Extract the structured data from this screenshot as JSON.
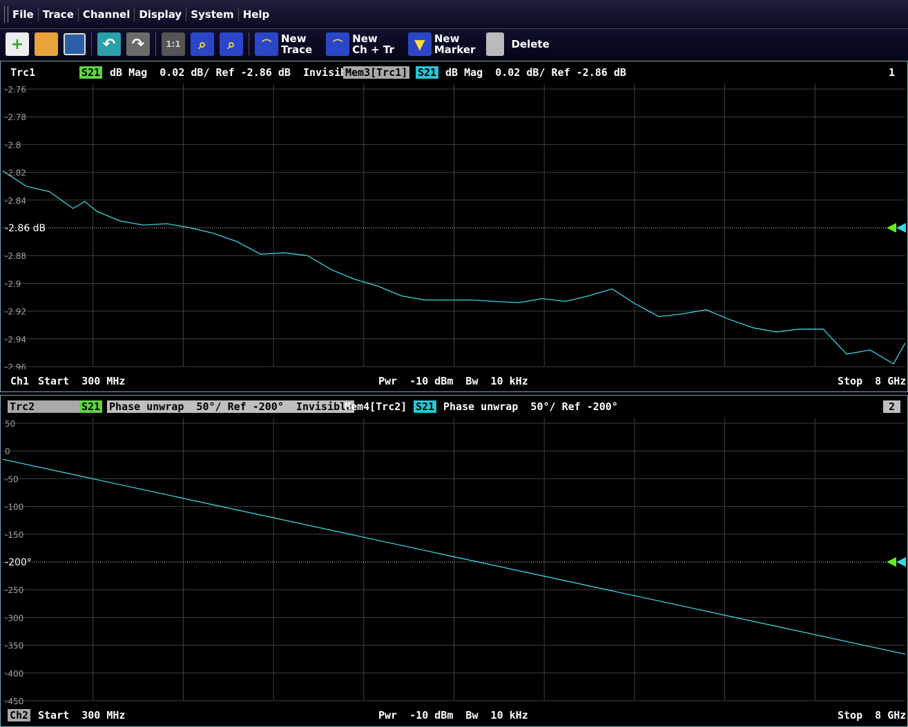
{
  "menu": [
    "File",
    "Trace",
    "Channel",
    "Display",
    "System",
    "Help"
  ],
  "toolbar": {
    "new_trace": "New\nTrace",
    "new_ch_tr": "New\nCh + Tr",
    "new_marker": "New\nMarker",
    "delete": "Delete",
    "zoom_1_1": "1:1"
  },
  "ch1": {
    "trace_name": "Trc1",
    "param": "S21",
    "info": "dB Mag  0.02 dB/ Ref -2.86 dB  Invisible",
    "mem_name": "Mem3[Trc1]",
    "mem_param": "S21",
    "mem_info": "dB Mag  0.02 dB/ Ref -2.86 dB",
    "number": "1",
    "ref_label": "-2.86 dB",
    "yticks": [
      "-2.76",
      "-2.78",
      "-2.8",
      "-2.82",
      "-2.84",
      "-2.86",
      "-2.88",
      "-2.9",
      "-2.92",
      "-2.94",
      "-2.96"
    ],
    "footer_left_label": "Ch1",
    "footer_start": "Start  300 MHz",
    "footer_mid": "Pwr  -10 dBm  Bw  10 kHz",
    "footer_stop": "Stop  8 GHz"
  },
  "ch2": {
    "trace_name": "Trc2",
    "param": "S21",
    "info": "Phase unwrap  50°/ Ref -200°  Invisible",
    "mem_name": "Mem4[Trc2]",
    "mem_param": "S21",
    "mem_info": "Phase unwrap  50°/ Ref -200°",
    "number": "2",
    "ref_label": "-200°",
    "yticks": [
      "50",
      "0",
      "-50",
      "-100",
      "-150",
      "-200",
      "-250",
      "-300",
      "-350",
      "-400",
      "-450"
    ],
    "footer_left_label": "Ch2",
    "footer_start": "Start  300 MHz",
    "footer_mid": "Pwr  -10 dBm  Bw  10 kHz",
    "footer_stop": "Stop  8 GHz"
  },
  "colors": {
    "trace": "#39d5e0",
    "ref_marker": "#66ee22",
    "grid": "#404040",
    "label": "#a0a0a0"
  },
  "chart_data": [
    {
      "type": "line",
      "title": "",
      "xlabel": "",
      "ylabel": "",
      "xlim": [
        0.3,
        8.0
      ],
      "ylim": [
        -2.96,
        -2.76
      ],
      "x": [
        0.3,
        0.5,
        0.7,
        0.9,
        1.0,
        1.1,
        1.3,
        1.5,
        1.7,
        1.9,
        2.1,
        2.3,
        2.5,
        2.7,
        2.9,
        3.1,
        3.3,
        3.5,
        3.7,
        3.9,
        4.1,
        4.3,
        4.5,
        4.7,
        4.9,
        5.1,
        5.3,
        5.5,
        5.7,
        5.9,
        6.1,
        6.3,
        6.5,
        6.7,
        6.9,
        7.1,
        7.3,
        7.5,
        7.7,
        7.9,
        8.0
      ],
      "series": [
        {
          "name": "Mem3[Trc1]",
          "values": [
            -2.819,
            -2.83,
            -2.834,
            -2.846,
            -2.841,
            -2.848,
            -2.855,
            -2.858,
            -2.857,
            -2.86,
            -2.864,
            -2.87,
            -2.879,
            -2.878,
            -2.88,
            -2.89,
            -2.897,
            -2.902,
            -2.909,
            -2.912,
            -2.912,
            -2.912,
            -2.913,
            -2.914,
            -2.911,
            -2.913,
            -2.909,
            -2.904,
            -2.915,
            -2.924,
            -2.922,
            -2.919,
            -2.926,
            -2.932,
            -2.935,
            -2.933,
            -2.933,
            -2.951,
            -2.948,
            -2.958,
            -2.943
          ]
        }
      ]
    },
    {
      "type": "line",
      "title": "",
      "xlabel": "",
      "ylabel": "",
      "xlim": [
        0.3,
        8.0
      ],
      "ylim": [
        -450,
        50
      ],
      "x": [
        0.3,
        8.0
      ],
      "series": [
        {
          "name": "Mem4[Trc2]",
          "values": [
            -15,
            -366
          ]
        }
      ]
    }
  ]
}
